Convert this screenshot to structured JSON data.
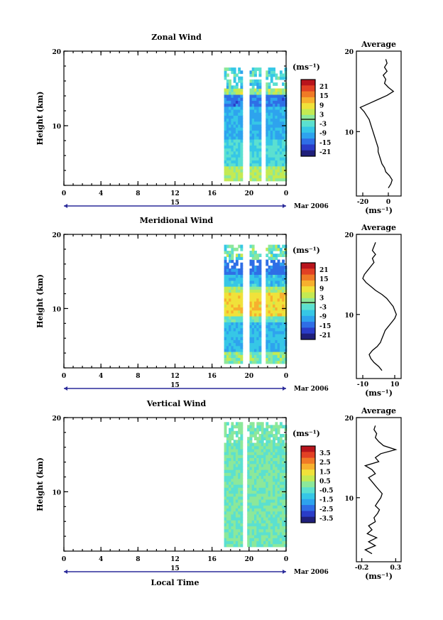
{
  "chart_data": [
    {
      "type": "heatmap",
      "title": "Zonal Wind",
      "ylabel": "Height (km)",
      "xlim": [
        0,
        24
      ],
      "ylim": [
        2,
        20
      ],
      "x_ticks": [
        "0",
        "4",
        "8",
        "12",
        "16",
        "20",
        "0"
      ],
      "y_ticks": [
        "10",
        "20"
      ],
      "date_axis": {
        "day": "15",
        "month_year": "Mar 2006"
      },
      "colorbar": {
        "unit": "(ms⁻¹)",
        "labels": [
          "21",
          "15",
          "9",
          "3",
          "-3",
          "-9",
          "-15",
          "-21"
        ]
      },
      "data_coverage_hours": [
        17.3,
        24
      ],
      "gap_hours": [
        [
          19.3,
          20.0
        ],
        [
          21.3,
          21.6
        ]
      ],
      "profile": {
        "title": "Average",
        "x_ticks": [
          "-20",
          "0"
        ],
        "xunit": "(ms⁻¹)",
        "xlim": [
          -25,
          10
        ],
        "y_ticks": [
          "10",
          "20"
        ],
        "heights": [
          3,
          3.5,
          4,
          4.5,
          5,
          5.5,
          6,
          6.5,
          7,
          7.5,
          8,
          8.5,
          9,
          9.5,
          10,
          10.5,
          11,
          11.5,
          12,
          12.5,
          13,
          13.5,
          14,
          14.5,
          15,
          15.5,
          16,
          16.5,
          17,
          17.5,
          18,
          18.5,
          19
        ],
        "values": [
          0,
          2,
          3,
          1,
          -2,
          -3,
          -5,
          -6,
          -7,
          -8,
          -8,
          -9,
          -10,
          -11,
          -12,
          -13,
          -14,
          -15,
          -17,
          -19,
          -22,
          -15,
          -8,
          -1,
          4,
          0,
          -3,
          -2,
          -4,
          -1,
          -3,
          -1,
          -2
        ]
      }
    },
    {
      "type": "heatmap",
      "title": "Meridional Wind",
      "ylabel": "Height (km)",
      "xlim": [
        0,
        24
      ],
      "ylim": [
        2,
        20
      ],
      "x_ticks": [
        "0",
        "4",
        "8",
        "12",
        "16",
        "20",
        "0"
      ],
      "y_ticks": [
        "10",
        "20"
      ],
      "date_axis": {
        "day": "15",
        "month_year": "Mar 2006"
      },
      "colorbar": {
        "unit": "(ms⁻¹)",
        "labels": [
          "21",
          "15",
          "9",
          "3",
          "-3",
          "-9",
          "-15",
          "-21"
        ]
      },
      "data_coverage_hours": [
        17.3,
        24
      ],
      "gap_hours": [
        [
          19.3,
          20.0
        ],
        [
          21.3,
          21.6
        ]
      ],
      "profile": {
        "title": "Average",
        "x_ticks": [
          "-10",
          "10"
        ],
        "xunit": "(ms⁻¹)",
        "xlim": [
          -14,
          14
        ],
        "y_ticks": [
          "10",
          "20"
        ],
        "heights": [
          3,
          3.5,
          4,
          4.5,
          5,
          5.5,
          6,
          6.5,
          7,
          7.5,
          8,
          8.5,
          9,
          9.5,
          10,
          10.5,
          11,
          11.5,
          12,
          12.5,
          13,
          13.5,
          14,
          14.5,
          15,
          15.5,
          16,
          16.5,
          17,
          17.5,
          18,
          18.5,
          19
        ],
        "values": [
          2,
          0,
          -3,
          -5,
          -6,
          -4,
          -1,
          1,
          2,
          3,
          4,
          6,
          8,
          10,
          11,
          10,
          9,
          7,
          5,
          2,
          -2,
          -5,
          -8,
          -10,
          -9,
          -7,
          -5,
          -3,
          -4,
          -2,
          -4,
          -3,
          -2
        ]
      }
    },
    {
      "type": "heatmap",
      "title": "Vertical Wind",
      "ylabel": "Height (km)",
      "xlabel": "Local Time",
      "xlim": [
        0,
        24
      ],
      "ylim": [
        2,
        20
      ],
      "x_ticks": [
        "0",
        "4",
        "8",
        "12",
        "16",
        "20",
        "0"
      ],
      "y_ticks": [
        "10",
        "20"
      ],
      "date_axis": {
        "day": "15",
        "month_year": "Mar 2006"
      },
      "colorbar": {
        "unit": "(ms⁻¹)",
        "labels": [
          "3.5",
          "2.5",
          "1.5",
          "0.5",
          "-0.5",
          "-1.5",
          "-2.5",
          "-3.5"
        ]
      },
      "data_coverage_hours": [
        17.3,
        24
      ],
      "gap_hours": [
        [
          19.3,
          19.8
        ]
      ],
      "profile": {
        "title": "Average",
        "x_ticks": [
          "-0.2",
          "0.3"
        ],
        "xunit": "(ms⁻¹)",
        "xlim": [
          -0.28,
          0.38
        ],
        "y_ticks": [
          "10",
          "20"
        ],
        "heights": [
          3,
          3.5,
          4,
          4.5,
          5,
          5.5,
          6,
          6.5,
          7,
          7.5,
          8,
          8.5,
          9,
          9.5,
          10,
          10.5,
          11,
          11.5,
          12,
          12.5,
          13,
          13.5,
          14,
          14.5,
          15,
          15.5,
          16,
          16.5,
          17,
          17.5,
          18,
          18.5,
          19
        ],
        "values": [
          -0.05,
          -0.15,
          0.0,
          -0.1,
          0.02,
          -0.12,
          -0.05,
          -0.1,
          0.0,
          -0.02,
          0.03,
          0.06,
          0.0,
          0.04,
          0.08,
          0.1,
          0.05,
          0.0,
          -0.05,
          -0.1,
          0.0,
          -0.05,
          -0.15,
          0.05,
          0.0,
          0.08,
          0.3,
          0.12,
          0.05,
          0.0,
          0.02,
          -0.02,
          0.0
        ]
      }
    }
  ]
}
